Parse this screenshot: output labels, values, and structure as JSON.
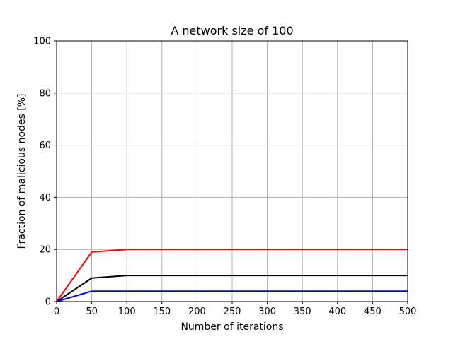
{
  "chart_data": {
    "type": "line",
    "title": "A network size of 100",
    "xlabel": "Number of iterations",
    "ylabel": "Fraction of malicious nodes [%]",
    "xlim": [
      0,
      500
    ],
    "ylim": [
      0,
      100
    ],
    "xticks": [
      0,
      50,
      100,
      150,
      200,
      250,
      300,
      350,
      400,
      450,
      500
    ],
    "yticks": [
      0,
      20,
      40,
      60,
      80,
      100
    ],
    "grid": true,
    "legend": "none",
    "x": [
      0,
      50,
      100,
      150,
      200,
      250,
      300,
      350,
      400,
      450,
      500
    ],
    "series": [
      {
        "color": "#ff0000",
        "values": [
          0,
          19,
          20,
          20,
          20,
          20,
          20,
          20,
          20,
          20,
          20
        ]
      },
      {
        "color": "#000000",
        "values": [
          0,
          9,
          10,
          10,
          10,
          10,
          10,
          10,
          10,
          10,
          10
        ]
      },
      {
        "color": "#0000ff",
        "values": [
          0,
          4,
          4,
          4,
          4,
          4,
          4,
          4,
          4,
          4,
          4
        ]
      }
    ]
  }
}
